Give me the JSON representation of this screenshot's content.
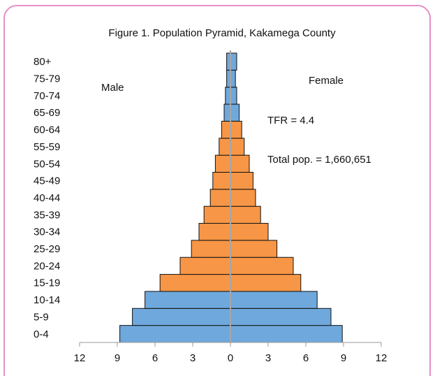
{
  "chart_data": {
    "type": "pyramid",
    "title": "Figure 1. Population Pyramid, Kakamega County",
    "categories": [
      "0-4",
      "5-9",
      "10-14",
      "15-19",
      "20-24",
      "25-29",
      "30-34",
      "35-39",
      "40-44",
      "45-49",
      "50-54",
      "55-59",
      "60-64",
      "65-69",
      "70-74",
      "75-79",
      "80+"
    ],
    "category_colors": [
      "#6fa8dc",
      "#6fa8dc",
      "#6fa8dc",
      "#f79646",
      "#f79646",
      "#f79646",
      "#f79646",
      "#f79646",
      "#f79646",
      "#f79646",
      "#f79646",
      "#f79646",
      "#f79646",
      "#6fa8dc",
      "#6fa8dc",
      "#6fa8dc",
      "#6fa8dc"
    ],
    "series": [
      {
        "name": "Male",
        "values": [
          -8.8,
          -7.8,
          -6.8,
          -5.6,
          -4.0,
          -3.1,
          -2.5,
          -2.1,
          -1.6,
          -1.4,
          -1.2,
          -0.9,
          -0.7,
          -0.5,
          -0.4,
          -0.3,
          -0.3
        ]
      },
      {
        "name": "Female",
        "values": [
          8.9,
          8.0,
          6.9,
          5.6,
          5.0,
          3.7,
          3.0,
          2.4,
          2.0,
          1.8,
          1.5,
          1.1,
          0.9,
          0.7,
          0.5,
          0.4,
          0.5
        ]
      }
    ],
    "annotations": [
      "TFR = 4.4",
      "Total pop. = 1,660,651"
    ],
    "xlim": [
      -12,
      12
    ],
    "xticks": [
      {
        "value": -12,
        "label": "12"
      },
      {
        "value": -9,
        "label": "9"
      },
      {
        "value": -6,
        "label": "6"
      },
      {
        "value": -3,
        "label": "3"
      },
      0,
      3,
      6,
      9,
      12
    ]
  }
}
